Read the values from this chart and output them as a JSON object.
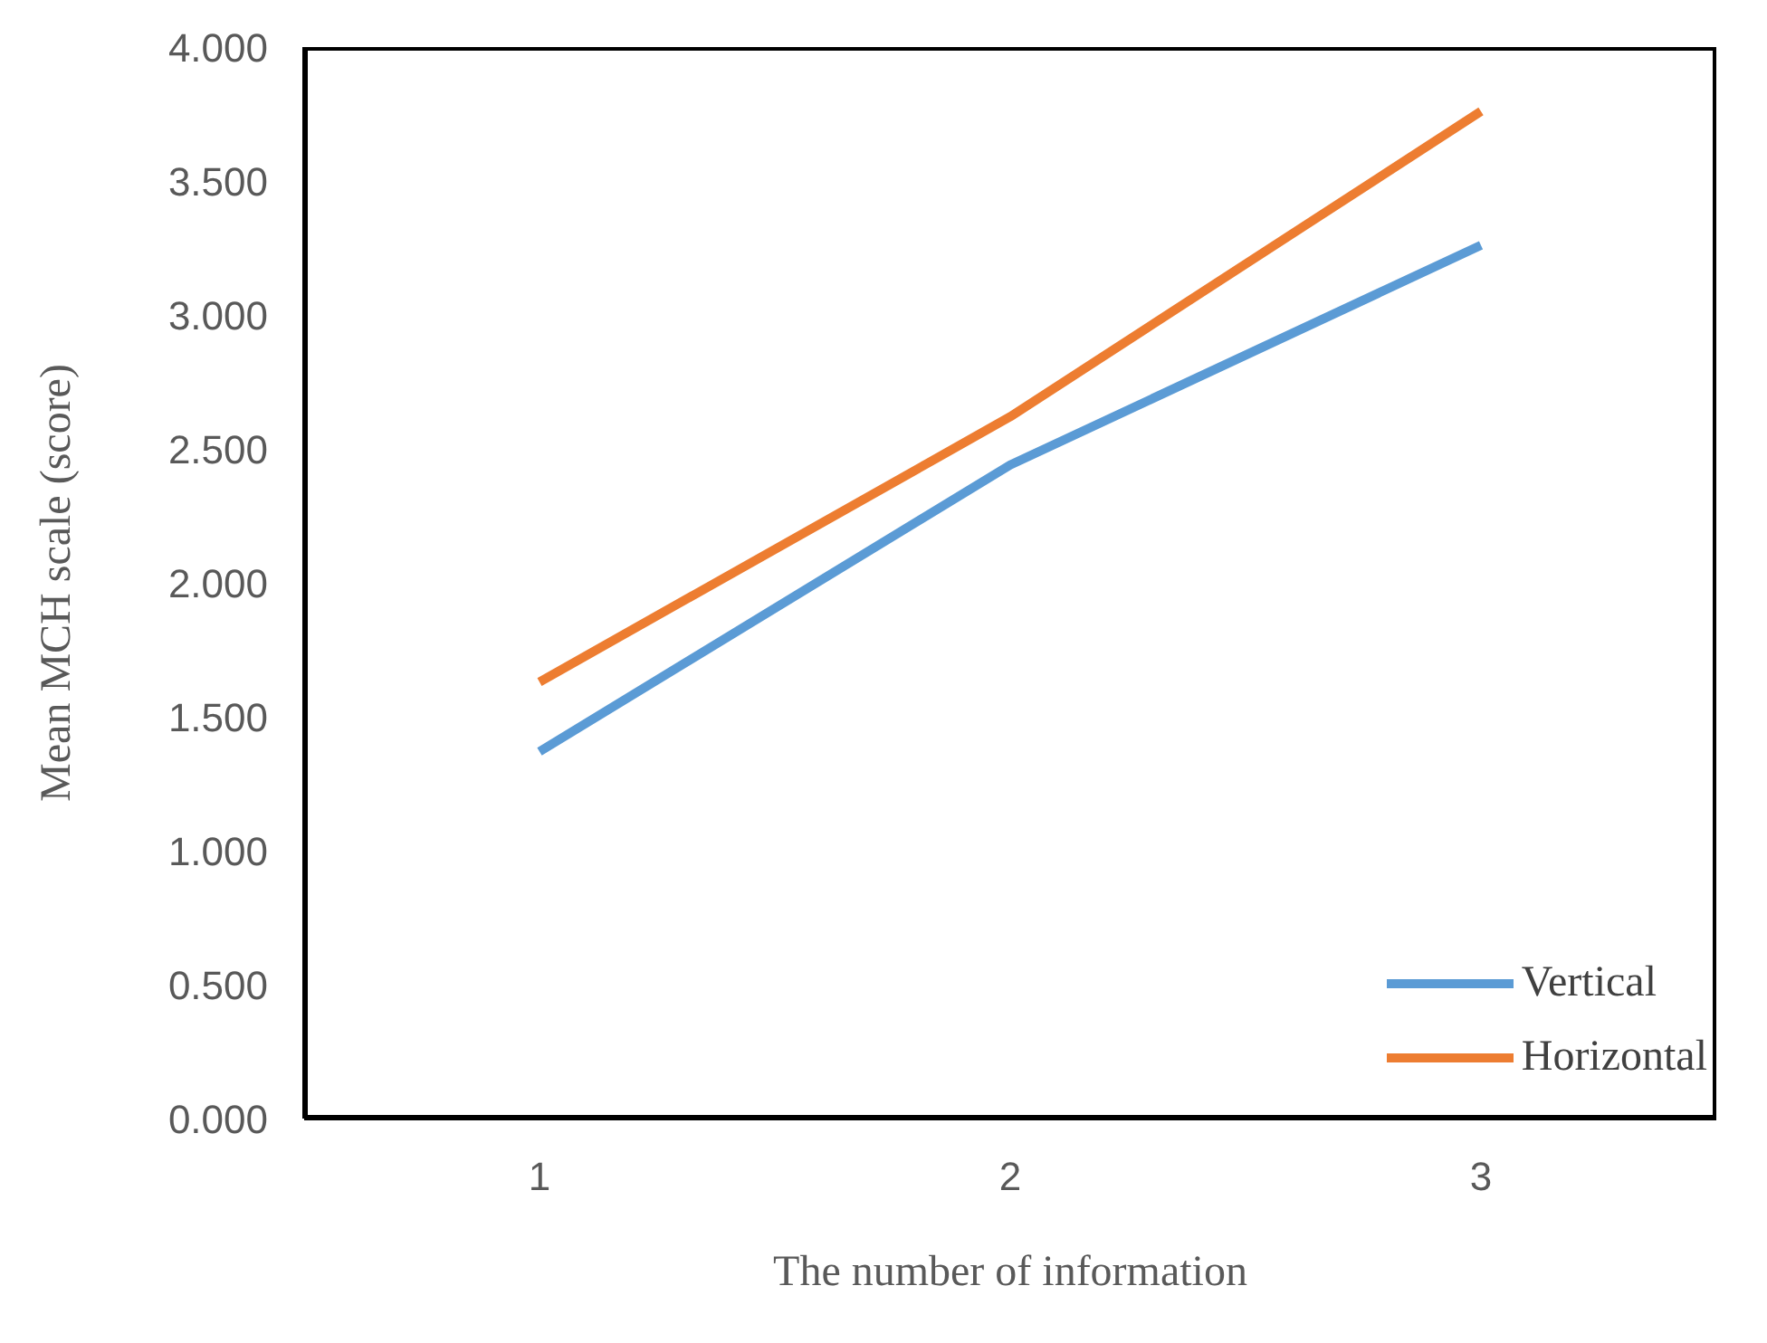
{
  "chart_data": {
    "type": "line",
    "xlabel": "The number of information",
    "ylabel": "Mean MCH scale (score)",
    "categories": [
      "1",
      "2",
      "3"
    ],
    "series": [
      {
        "name": "Vertical",
        "color": "#5b9bd5",
        "values": [
          1.37,
          2.44,
          3.26
        ]
      },
      {
        "name": "Horizontal",
        "color": "#ed7d31",
        "values": [
          1.63,
          2.62,
          3.76
        ]
      }
    ],
    "ylim": [
      0,
      4
    ],
    "yticks": [
      {
        "value": 0,
        "label": "0.000"
      },
      {
        "value": 0.5,
        "label": "0.500"
      },
      {
        "value": 1,
        "label": "1.000"
      },
      {
        "value": 1.5,
        "label": "1.500"
      },
      {
        "value": 2,
        "label": "2.000"
      },
      {
        "value": 2.5,
        "label": "2.500"
      },
      {
        "value": 3,
        "label": "3.000"
      },
      {
        "value": 3.5,
        "label": "3.500"
      },
      {
        "value": 4,
        "label": "4.000"
      }
    ],
    "grid": false,
    "legend": "bottom right",
    "marker": "none",
    "line_style": "solid"
  }
}
